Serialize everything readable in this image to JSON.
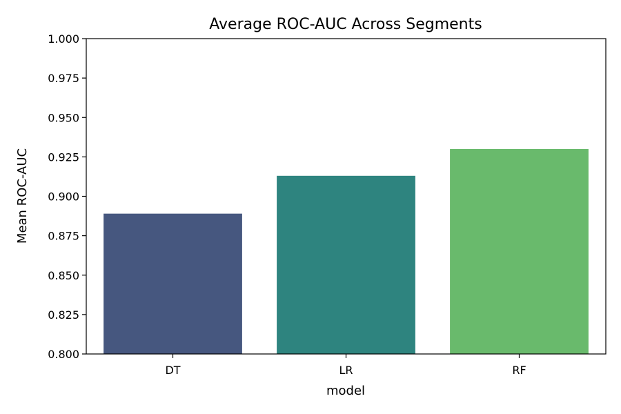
{
  "chart_data": {
    "type": "bar",
    "title": "Average ROC-AUC Across Segments",
    "xlabel": "model",
    "ylabel": "Mean ROC-AUC",
    "categories": [
      "DT",
      "LR",
      "RF"
    ],
    "values": [
      0.889,
      0.913,
      0.93
    ],
    "colors": [
      "#46577f",
      "#2e847f",
      "#69ba6c"
    ],
    "ylim": [
      0.8,
      1.0
    ],
    "yticks": [
      "0.800",
      "0.825",
      "0.850",
      "0.875",
      "0.900",
      "0.925",
      "0.950",
      "0.975",
      "1.000"
    ],
    "grid": false,
    "legend": false
  }
}
